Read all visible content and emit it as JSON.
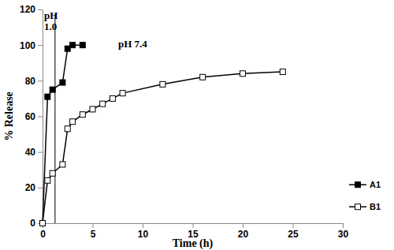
{
  "chart_data": {
    "type": "line",
    "x_label": "Time (h)",
    "y_label": "% Release",
    "xlim": [
      0,
      30
    ],
    "xticks": [
      0,
      5,
      10,
      15,
      20,
      25,
      30
    ],
    "ylim": [
      0,
      120
    ],
    "yticks": [
      0,
      20,
      40,
      60,
      80,
      100,
      120
    ],
    "grid": false,
    "legend": "right",
    "reference_line": {
      "x": 1.25
    },
    "annotations": [
      "pH 1.0",
      "pH 7.4"
    ],
    "series": [
      {
        "name": "A1",
        "color": "#000000",
        "marker": "square",
        "line_style": "solid",
        "x": [
          0,
          0.5,
          1,
          2,
          2.5,
          3,
          4
        ],
        "values": [
          0,
          71,
          75,
          79,
          98,
          100,
          100
        ]
      },
      {
        "name": "B1",
        "color": "#000000",
        "marker": "square-open",
        "line_style": "solid",
        "x": [
          0,
          0.5,
          1,
          2,
          2.5,
          3,
          4,
          5,
          6,
          7,
          8,
          12,
          16,
          20,
          24
        ],
        "values": [
          0,
          24,
          28,
          33,
          53,
          57,
          61,
          64,
          67,
          70,
          73,
          78,
          82,
          84,
          85
        ]
      }
    ]
  }
}
